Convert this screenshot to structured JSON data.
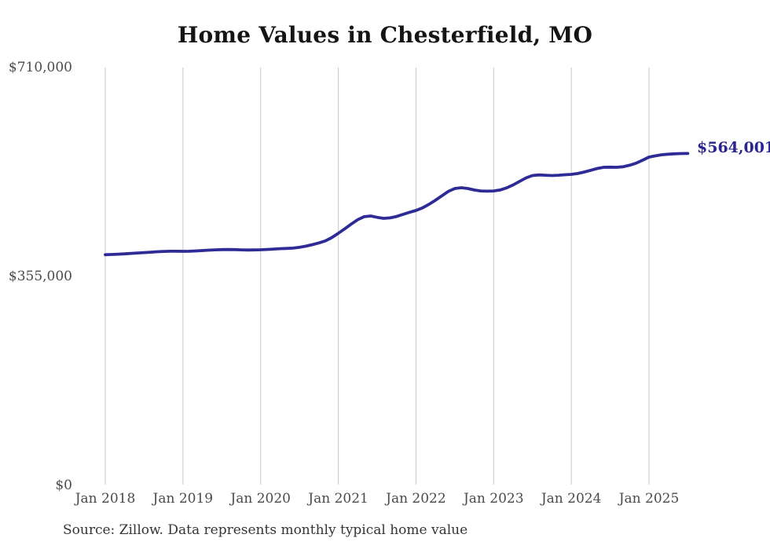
{
  "chart": {
    "title": "Home Values in Chesterfield, MO",
    "end_label": "$564,001",
    "source": "Source: Zillow. Data represents monthly typical home value",
    "line_color": "#2e2a96",
    "end_label_color": "#2a2492",
    "grid_color": "#c9c9c9",
    "axis_text_color": "#4b4b4b"
  },
  "chart_data": {
    "type": "line",
    "title": "Home Values in Chesterfield, MO",
    "x_start": "2018-01",
    "x_end": "2025-07",
    "x_unit": "month",
    "x_tick_labels": [
      "Jan 2018",
      "Jan 2019",
      "Jan 2020",
      "Jan 2021",
      "Jan 2022",
      "Jan 2023",
      "Jan 2024",
      "Jan 2025"
    ],
    "x_tick_month_indices": [
      0,
      12,
      24,
      36,
      48,
      60,
      72,
      84
    ],
    "y_ticks": [
      {
        "label": "$710,000",
        "value": 710000
      },
      {
        "label": "$355,000",
        "value": 355000
      },
      {
        "label": "$0",
        "value": 0
      }
    ],
    "ylim": [
      0,
      710000
    ],
    "grid": "vertical-only",
    "legend": "none",
    "end_annotation": {
      "label": "$564,001",
      "value": 564001,
      "month": "2025-07"
    },
    "series": [
      {
        "name": "Monthly typical home value",
        "color": "#2e2a96",
        "values": [
          392000,
          392400,
          392900,
          393500,
          394200,
          394900,
          395600,
          396300,
          397000,
          397600,
          397900,
          397800,
          397700,
          397900,
          398400,
          399000,
          399700,
          400300,
          400700,
          400800,
          400600,
          400200,
          400000,
          400100,
          400400,
          400900,
          401600,
          402200,
          402600,
          403200,
          404500,
          406500,
          409000,
          412000,
          415500,
          421000,
          428400,
          436000,
          444000,
          451500,
          456500,
          457700,
          455500,
          453700,
          454500,
          457000,
          460500,
          464000,
          467100,
          471500,
          477500,
          484500,
          492000,
          499500,
          504500,
          505800,
          504500,
          502000,
          500300,
          500000,
          500400,
          502000,
          505500,
          510500,
          516500,
          522500,
          526500,
          527500,
          527000,
          526500,
          527000,
          527800,
          528500,
          530000,
          532500,
          535500,
          538500,
          540500,
          540800,
          540500,
          541500,
          544000,
          547500,
          552500,
          557900,
          560000,
          561800,
          562800,
          563400,
          563800,
          564001
        ]
      }
    ]
  }
}
